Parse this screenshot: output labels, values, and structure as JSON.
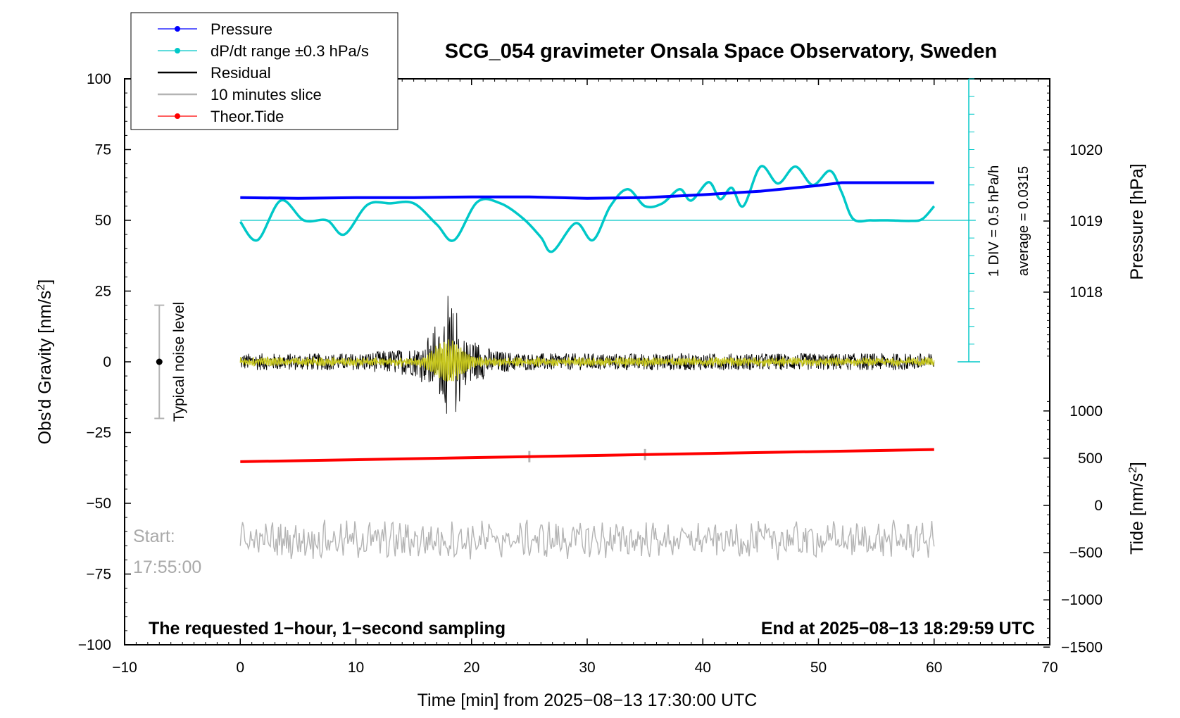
{
  "chart_data": {
    "type": "line",
    "title": "SCG_054 gravimeter Onsala Space Observatory, Sweden",
    "xlabel": "Time [min] from 2025−08−13 17:30:00 UTC",
    "ylabel_left": "Obs'd Gravity [nm/s",
    "ylabel_left_sup": "2",
    "ylabel_left_close": "]",
    "ylabel_right_pressure": "Pressure [hPa]",
    "ylabel_right_tide": "Tide [nm/s",
    "ylabel_right_tide_sup": "2",
    "ylabel_right_tide_close": "]",
    "xlim": [
      -10,
      70
    ],
    "ylim_left": [
      -100,
      100
    ],
    "x_ticks": [
      "−10",
      "0",
      "10",
      "20",
      "30",
      "40",
      "50",
      "60",
      "70"
    ],
    "y_ticks_left": [
      "100",
      "75",
      "50",
      "25",
      "0",
      "−25",
      "−50",
      "−75",
      "−100"
    ],
    "pressure_ticks": [
      "1020",
      "1019",
      "1018"
    ],
    "tide_ticks": [
      "1000",
      "500",
      "0",
      "−500",
      "−1000",
      "−1500"
    ],
    "legend": [
      {
        "label": "Pressure",
        "color": "#0000ff",
        "marker": true
      },
      {
        "label": "dP/dt range ±0.3 hPa/s",
        "color": "#00c8c8",
        "marker": true
      },
      {
        "label": "Residual",
        "color": "#000000",
        "marker": false
      },
      {
        "label": "10 minutes slice",
        "color": "#b4b4b4",
        "marker": false
      },
      {
        "label": "Theor.Tide",
        "color": "#ff0000",
        "marker": true
      }
    ],
    "annotations": {
      "scale_div": "1 DIV = 0.5 hPa/h",
      "scale_avg": "average = 0.0315",
      "noise_label": "Typical noise level",
      "start_label": "Start:",
      "start_time": "17:55:00",
      "bottom_left": "The requested 1−hour, 1−second sampling",
      "bottom_right": "End at 2025−08−13 18:29:59 UTC"
    },
    "series": [
      {
        "name": "Pressure",
        "color": "#0000ff",
        "axis": "pressure_hPa",
        "x": [
          0,
          5,
          10,
          15,
          20,
          25,
          30,
          35,
          40,
          45,
          50,
          52,
          55,
          60
        ],
        "values": [
          1019.33,
          1019.32,
          1019.33,
          1019.33,
          1019.34,
          1019.34,
          1019.32,
          1019.33,
          1019.37,
          1019.42,
          1019.5,
          1019.54,
          1019.54,
          1019.54
        ]
      },
      {
        "name": "dP/dt range ±0.3 hPa/s",
        "color": "#00c8c8",
        "axis": "gravity_scaled",
        "x": [
          0,
          1.5,
          3.5,
          5.5,
          7.5,
          9,
          11,
          13,
          15,
          17,
          18.5,
          20.5,
          22.5,
          24.5,
          26,
          27,
          29,
          30.5,
          32,
          33.5,
          35,
          36.5,
          38,
          39,
          40.5,
          41.5,
          42.5,
          43.5,
          45,
          46.5,
          48,
          49.5,
          51,
          52,
          53,
          54.5,
          56,
          58,
          59,
          60
        ],
        "values": [
          49.5,
          43,
          57,
          50,
          50,
          45,
          55.5,
          56,
          56,
          48.5,
          43,
          56.5,
          56,
          50.5,
          44,
          39,
          49,
          43,
          55,
          61,
          55,
          56,
          61,
          57,
          63.5,
          57.5,
          61.5,
          55,
          69,
          63,
          69,
          62.5,
          67.5,
          60,
          50.5,
          50,
          50,
          49.8,
          50.5,
          55
        ]
      },
      {
        "name": "Theor.Tide",
        "color": "#ff0000",
        "axis": "gravity",
        "x": [
          0,
          60
        ],
        "values": [
          -35.3,
          -31
        ]
      },
      {
        "name": "Residual",
        "color": "#000000",
        "axis": "gravity",
        "x": [
          0,
          10,
          15,
          17,
          18,
          19,
          22,
          25,
          30,
          40,
          50,
          60
        ],
        "amplitude": [
          3,
          3,
          5,
          9,
          16,
          10,
          4,
          3,
          3,
          3,
          3,
          3
        ],
        "values": [
          0,
          0,
          0,
          0,
          0,
          0,
          0,
          0,
          0,
          0,
          0,
          0
        ]
      },
      {
        "name": "10 minutes slice",
        "color": "#b4b4b4",
        "axis": "gravity",
        "x_range": [
          0,
          60
        ],
        "center": -63,
        "amplitude": 5
      }
    ],
    "slice_marker_x": [
      25,
      35
    ],
    "noise_bar_x": -7,
    "noise_bar_range": [
      -20,
      20
    ],
    "dpdt_baseline": 50
  }
}
